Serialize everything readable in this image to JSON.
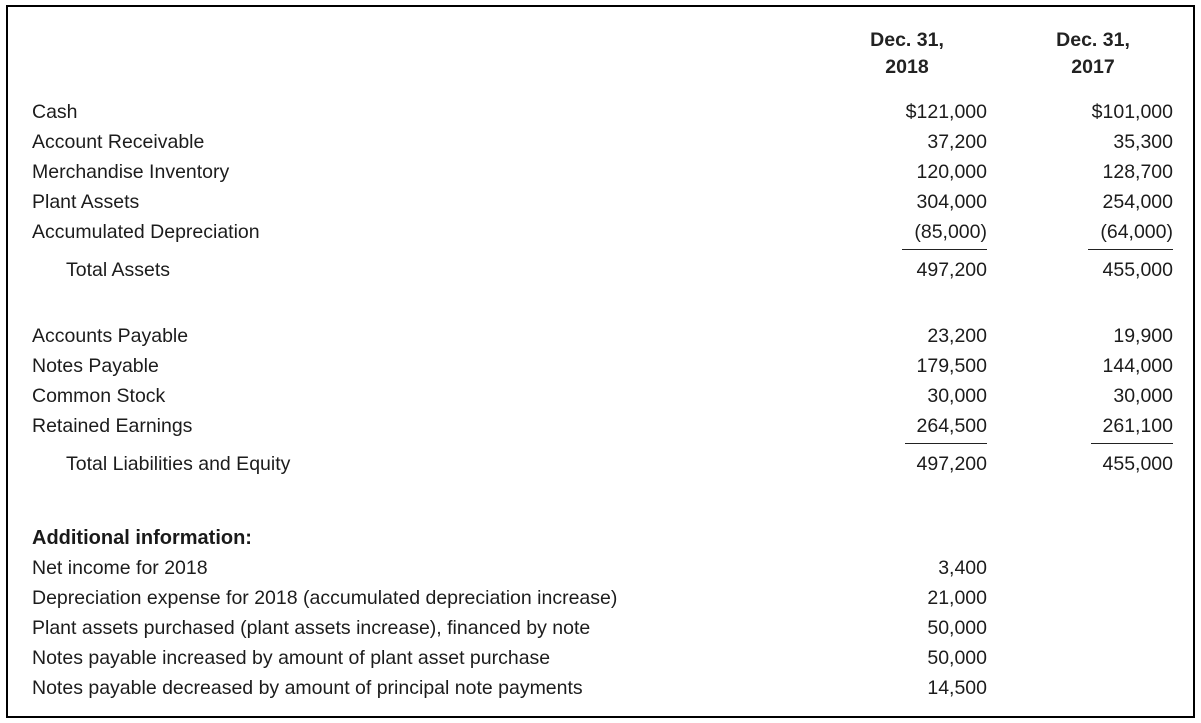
{
  "header": {
    "col_2018": "Dec. 31,\n2018",
    "col_2017": "Dec. 31,\n2017"
  },
  "assets": {
    "rows": [
      {
        "label": "Cash",
        "y2018": "$121,000",
        "y2017": "$101,000"
      },
      {
        "label": "Account Receivable",
        "y2018": "37,200",
        "y2017": "35,300"
      },
      {
        "label": "Merchandise Inventory",
        "y2018": "120,000",
        "y2017": "128,700"
      },
      {
        "label": "Plant Assets",
        "y2018": "304,000",
        "y2017": "254,000"
      },
      {
        "label": "Accumulated Depreciation",
        "y2018": "(85,000)",
        "y2017": "(64,000)"
      },
      {
        "label": "Total Assets",
        "y2018": "497,200",
        "y2017": "455,000"
      }
    ]
  },
  "liabilities": {
    "rows": [
      {
        "label": "Accounts Payable",
        "y2018": "23,200",
        "y2017": "19,900"
      },
      {
        "label": "Notes Payable",
        "y2018": "179,500",
        "y2017": "144,000"
      },
      {
        "label": "Common Stock",
        "y2018": "30,000",
        "y2017": "30,000"
      },
      {
        "label": "Retained Earnings",
        "y2018": "264,500",
        "y2017": "261,100"
      },
      {
        "label": "Total Liabilities and Equity",
        "y2018": "497,200",
        "y2017": "455,000"
      }
    ]
  },
  "additional": {
    "title": "Additional information:",
    "rows": [
      {
        "label": "Net income for 2018",
        "value": "3,400"
      },
      {
        "label": "Depreciation expense for 2018 (accumulated depreciation increase)",
        "value": "21,000"
      },
      {
        "label": "Plant assets purchased (plant assets increase), financed by note",
        "value": "50,000"
      },
      {
        "label": "Notes payable increased by amount of plant asset purchase",
        "value": "50,000"
      },
      {
        "label": "Notes payable decreased by amount of principal note payments",
        "value": "14,500"
      }
    ]
  }
}
